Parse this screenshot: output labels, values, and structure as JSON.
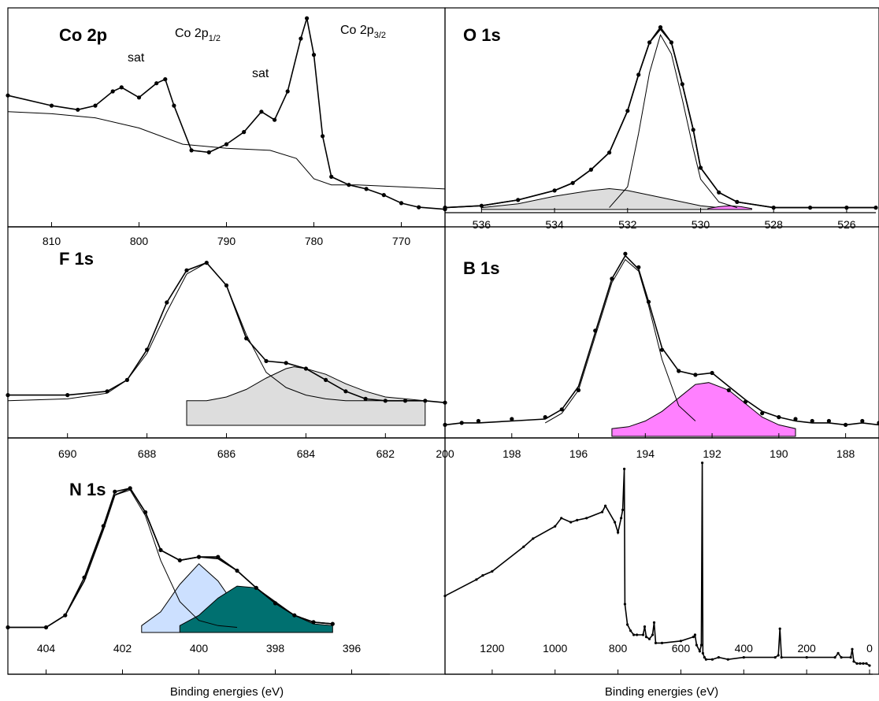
{
  "chart_data": [
    {
      "id": "co2p",
      "type": "line",
      "title": "Co 2p",
      "annotations": [
        {
          "text": "sat",
          "x": 802.5
        },
        {
          "text": "Co 2p",
          "sub": "1/2",
          "x": 797
        },
        {
          "text": "sat",
          "x": 786.5
        },
        {
          "text": "Co 2p",
          "sub": "3/2",
          "x": 780.5
        }
      ],
      "xlim": [
        815,
        765
      ],
      "ylim": [
        0,
        100
      ],
      "xticks": [
        810,
        800,
        790,
        780,
        770
      ],
      "xlabel": "",
      "series": [
        {
          "role": "data",
          "x": [
            815,
            810,
            807,
            805,
            803,
            802,
            800,
            798,
            797,
            796,
            794,
            792,
            790,
            788,
            786,
            784.5,
            783,
            781.5,
            780.8,
            780,
            779,
            778,
            776,
            774,
            772,
            770,
            768,
            765
          ],
          "y": [
            60,
            55,
            53,
            55,
            62,
            64,
            59,
            66,
            68,
            55,
            33,
            32,
            36,
            42,
            52,
            48,
            62,
            88,
            98,
            80,
            40,
            20,
            16,
            14,
            11,
            7,
            5,
            4
          ]
        },
        {
          "role": "background",
          "x": [
            815,
            810,
            805,
            800,
            795,
            790,
            785,
            782,
            780,
            778,
            775,
            770,
            765
          ],
          "y": [
            52,
            51,
            49,
            44,
            36,
            34,
            33,
            29,
            19,
            16,
            16,
            15,
            14
          ]
        }
      ]
    },
    {
      "id": "o1s",
      "type": "line",
      "title": "O 1s",
      "xlim": [
        537,
        525.2
      ],
      "ylim": [
        0,
        100
      ],
      "xticks": [
        536,
        534,
        532,
        530,
        528,
        526
      ],
      "xlabel": "",
      "series": [
        {
          "role": "data",
          "x": [
            537,
            536,
            535,
            534,
            533.5,
            533,
            532.5,
            532,
            531.7,
            531.4,
            531.1,
            530.8,
            530.5,
            530.2,
            530,
            529.5,
            529,
            528,
            527,
            526,
            525.2
          ],
          "y": [
            1,
            2,
            5,
            10,
            14,
            21,
            30,
            52,
            71,
            88,
            96,
            88,
            66,
            42,
            22,
            9,
            4,
            1,
            1,
            1,
            1
          ]
        },
        {
          "role": "envelope",
          "x": [
            537,
            536,
            535,
            534,
            533.5,
            533,
            532.5,
            532,
            531.7,
            531.4,
            531.1,
            530.8,
            530.5,
            530.2,
            530,
            529.5,
            529,
            528,
            527,
            526,
            525.2
          ],
          "y": [
            1,
            2,
            5,
            10,
            14,
            21,
            30,
            52,
            71,
            88,
            95,
            88,
            66,
            42,
            22,
            9,
            4,
            1,
            1,
            1,
            1
          ]
        },
        {
          "role": "component",
          "x": [
            532.5,
            532,
            531.7,
            531.4,
            531.1,
            530.8,
            530.5,
            530.2,
            530,
            529.5,
            529
          ],
          "y": [
            1,
            12,
            40,
            72,
            92,
            82,
            58,
            32,
            16,
            4,
            1
          ]
        },
        {
          "role": "component",
          "fill": "#dddddd",
          "x": [
            536,
            535,
            534,
            533,
            532.5,
            532,
            531,
            530,
            529.5
          ],
          "y": [
            1,
            3,
            7,
            10,
            11,
            10,
            6,
            2,
            1
          ]
        },
        {
          "role": "component",
          "fill": "#ff80ff",
          "x": [
            529.8,
            529.5,
            529.2,
            528.9,
            528.6
          ],
          "y": [
            0.5,
            1.5,
            2,
            1.5,
            0.5
          ]
        }
      ]
    },
    {
      "id": "f1s",
      "type": "line",
      "title": "F 1s",
      "xlim": [
        691.5,
        680.5
      ],
      "ylim": [
        0,
        100
      ],
      "xticks": [
        690,
        688,
        686,
        684,
        682
      ],
      "xlabel": "",
      "series": [
        {
          "role": "data",
          "x": [
            691.5,
            690,
            689,
            688.5,
            688,
            687.5,
            687,
            686.5,
            686,
            685.5,
            685,
            684.5,
            684,
            683.5,
            683,
            682.5,
            682,
            681.5,
            681,
            680.5
          ],
          "y": [
            16,
            16,
            18,
            24,
            40,
            65,
            82,
            86,
            74,
            46,
            34,
            33,
            30,
            24,
            18,
            14,
            13,
            13,
            13,
            12
          ]
        },
        {
          "role": "component",
          "x": [
            691.5,
            690,
            689,
            688.5,
            688,
            687.5,
            687,
            686.5,
            686,
            685.5,
            685,
            684.5,
            684,
            683.5,
            683,
            682.5,
            682
          ],
          "y": [
            13,
            14,
            17,
            24,
            38,
            60,
            80,
            86,
            74,
            48,
            28,
            20,
            16,
            14,
            13,
            13,
            13
          ]
        },
        {
          "role": "component",
          "fill": "#dddddd",
          "x": [
            687,
            686.5,
            686,
            685.5,
            685,
            684.5,
            684.3,
            684,
            683.5,
            683,
            682.5,
            682,
            681.5,
            681
          ],
          "y": [
            13,
            13,
            15,
            19,
            25,
            30,
            31,
            30,
            27,
            22,
            18,
            15,
            14,
            13
          ]
        }
      ]
    },
    {
      "id": "b1s",
      "type": "line",
      "title": "B 1s",
      "xlim": [
        200,
        187
      ],
      "ylim": [
        0,
        100
      ],
      "xticks": [
        200,
        198,
        196,
        194,
        192,
        190,
        188
      ],
      "xlabel": "",
      "series": [
        {
          "role": "data",
          "x": [
            200,
            199.5,
            199,
            198,
            197,
            196.5,
            196,
            195.5,
            195,
            194.6,
            194.2,
            193.9,
            193.5,
            193,
            192.5,
            192,
            191.5,
            191,
            190.5,
            190,
            189.5,
            189,
            188.5,
            188,
            187.5,
            187
          ],
          "y": [
            6,
            7,
            8,
            9,
            10,
            14,
            24,
            55,
            82,
            95,
            88,
            70,
            45,
            34,
            32,
            33,
            24,
            18,
            12,
            10,
            9,
            8,
            8,
            6,
            8,
            7
          ]
        },
        {
          "role": "envelope",
          "x": [
            200,
            199.5,
            199,
            198,
            197,
            196.5,
            196,
            195.5,
            195,
            194.6,
            194.2,
            193.9,
            193.5,
            193,
            192.5,
            192,
            191.5,
            191,
            190.5,
            190,
            189.5,
            189,
            188.5,
            188,
            187.5,
            187
          ],
          "y": [
            6,
            7,
            7,
            8,
            9,
            14,
            26,
            54,
            82,
            94,
            87,
            70,
            46,
            34,
            32,
            33,
            26,
            19,
            13,
            10,
            8,
            7,
            7,
            6,
            7,
            6
          ]
        },
        {
          "role": "component",
          "x": [
            197,
            196.5,
            196,
            195.5,
            195,
            194.6,
            194.2,
            193.9,
            193.5,
            193,
            192.5
          ],
          "y": [
            7,
            12,
            24,
            52,
            80,
            92,
            86,
            68,
            40,
            16,
            8
          ]
        },
        {
          "role": "component",
          "fill": "#ff80ff",
          "x": [
            195,
            194.5,
            194,
            193.5,
            193,
            192.5,
            192.1,
            191.5,
            191,
            190.5,
            190,
            189.5
          ],
          "y": [
            4,
            5,
            8,
            13,
            20,
            27,
            28,
            24,
            17,
            10,
            6,
            4
          ]
        }
      ]
    },
    {
      "id": "n1s",
      "type": "line",
      "title": "N 1s",
      "xlim": [
        405,
        395
      ],
      "ylim": [
        0,
        100
      ],
      "xticks": [
        404,
        402,
        400,
        398,
        396
      ],
      "xlabel": "Binding energies (eV)",
      "series": [
        {
          "role": "data",
          "x": [
            405,
            404,
            403.5,
            403,
            402.5,
            402.2,
            401.8,
            401.4,
            401,
            400.5,
            400,
            399.5,
            399,
            398.5,
            398,
            397.5,
            397,
            396.5
          ],
          "y": [
            3,
            3,
            10,
            32,
            62,
            82,
            84,
            70,
            48,
            42,
            44,
            44,
            36,
            26,
            17,
            10,
            6,
            5
          ]
        },
        {
          "role": "envelope",
          "x": [
            405,
            404,
            403.5,
            403,
            402.5,
            402.2,
            401.8,
            401.4,
            401,
            400.5,
            400,
            399.5,
            399,
            398.5,
            398,
            397.5,
            397,
            396.5
          ],
          "y": [
            3,
            3,
            10,
            30,
            60,
            80,
            84,
            70,
            48,
            42,
            44,
            43,
            36,
            26,
            17,
            10,
            6,
            5
          ]
        },
        {
          "role": "component",
          "x": [
            404,
            403.5,
            403,
            402.5,
            402.2,
            401.8,
            401.4,
            401,
            400.5,
            400,
            399.5,
            399
          ],
          "y": [
            3,
            10,
            30,
            60,
            80,
            83,
            68,
            42,
            18,
            7,
            4,
            3
          ]
        },
        {
          "role": "component",
          "fill": "#cce0ff",
          "x": [
            401.5,
            401,
            400.5,
            400,
            399.5,
            399,
            398.5,
            398
          ],
          "y": [
            4,
            12,
            28,
            40,
            30,
            14,
            6,
            4
          ]
        },
        {
          "role": "component",
          "fill": "#007070",
          "x": [
            400.5,
            400,
            399.5,
            399,
            398.5,
            398,
            397.5,
            397,
            396.5
          ],
          "y": [
            4,
            10,
            20,
            27,
            26,
            18,
            10,
            5,
            4
          ]
        }
      ]
    },
    {
      "id": "survey",
      "type": "line",
      "title": "",
      "xlim": [
        1350,
        -10
      ],
      "ylim": [
        0,
        100
      ],
      "xticks": [
        1200,
        1000,
        800,
        600,
        400,
        200,
        0
      ],
      "xlabel": "Binding energies (eV)",
      "series": [
        {
          "role": "data",
          "x": [
            1350,
            1250,
            1230,
            1200,
            1100,
            1070,
            1000,
            980,
            950,
            930,
            900,
            850,
            840,
            810,
            800,
            790,
            785,
            780,
            778,
            770,
            760,
            750,
            740,
            720,
            715,
            710,
            700,
            690,
            685,
            680,
            660,
            600,
            560,
            555,
            550,
            540,
            535,
            532,
            530,
            525,
            520,
            500,
            480,
            450,
            400,
            300,
            290,
            285,
            280,
            200,
            110,
            100,
            90,
            60,
            55,
            50,
            40,
            30,
            20,
            10,
            0
          ],
          "y": [
            34,
            42,
            44,
            46,
            58,
            62,
            68,
            72,
            70,
            71,
            72,
            75,
            78,
            70,
            65,
            72,
            76,
            96,
            30,
            20,
            17,
            15,
            15,
            15,
            19,
            14,
            13,
            15,
            21,
            11,
            11,
            12,
            14,
            15,
            10,
            7,
            10,
            99,
            6,
            4,
            3,
            3,
            4,
            3,
            4,
            4,
            5,
            18,
            4,
            4,
            4,
            6,
            4,
            4,
            8,
            2,
            1,
            1,
            1,
            1,
            0
          ]
        }
      ]
    }
  ]
}
